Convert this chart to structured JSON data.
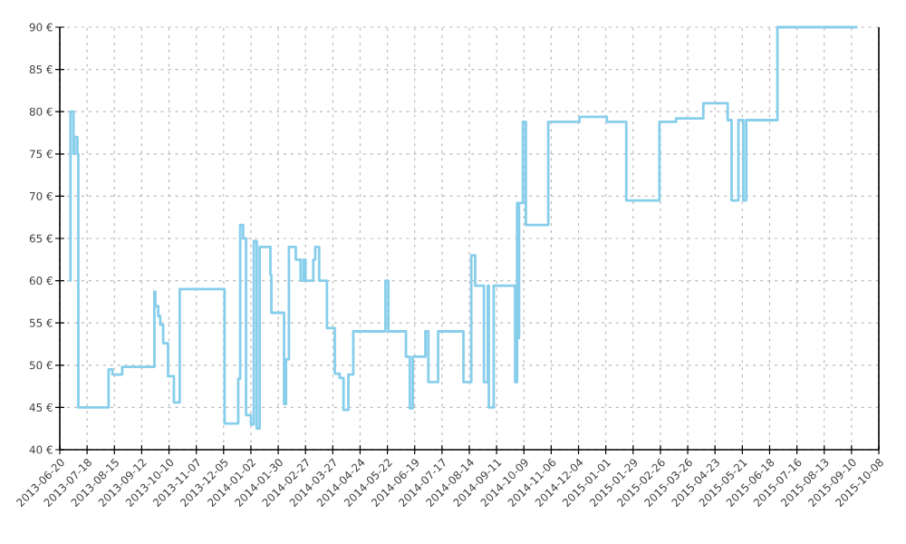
{
  "chart_data": {
    "type": "step",
    "color": "#87ceeb",
    "grid": true,
    "line_style": "solid",
    "marker": "none",
    "x": [
      "2013-06-30",
      "2013-07-01",
      "2013-07-04",
      "2013-07-05",
      "2013-07-08",
      "2013-07-09",
      "2013-08-09",
      "2013-08-13",
      "2013-08-23",
      "2013-09-25",
      "2013-09-26",
      "2013-09-29",
      "2013-10-01",
      "2013-10-04",
      "2013-10-09",
      "2013-10-15",
      "2013-10-21",
      "2013-12-06",
      "2013-12-20",
      "2013-12-22",
      "2013-12-25",
      "2013-12-28",
      "2014-01-02",
      "2014-01-05",
      "2014-01-08",
      "2014-01-11",
      "2014-01-22",
      "2014-01-23",
      "2014-02-05",
      "2014-02-07",
      "2014-02-10",
      "2014-02-17",
      "2014-02-22",
      "2014-02-25",
      "2014-02-27",
      "2014-03-07",
      "2014-03-09",
      "2014-03-13",
      "2014-03-21",
      "2014-03-29",
      "2014-04-03",
      "2014-04-07",
      "2014-04-12",
      "2014-04-17",
      "2014-05-20",
      "2014-05-23",
      "2014-06-10",
      "2014-06-14",
      "2014-06-17",
      "2014-06-30",
      "2014-07-03",
      "2014-07-13",
      "2014-08-08",
      "2014-08-16",
      "2014-08-20",
      "2014-08-29",
      "2014-09-02",
      "2014-09-03",
      "2014-09-08",
      "2014-09-30",
      "2014-10-02",
      "2014-10-03",
      "2014-10-04",
      "2014-10-08",
      "2014-10-11",
      "2014-11-03",
      "2014-12-05",
      "2015-01-02",
      "2015-01-22",
      "2015-02-25",
      "2015-03-14",
      "2015-04-11",
      "2015-05-06",
      "2015-05-10",
      "2015-05-17",
      "2015-05-22",
      "2015-05-25",
      "2015-06-26",
      "2015-09-16"
    ],
    "values": [
      60,
      80,
      75,
      77,
      75,
      45,
      49.5,
      48.9,
      49.8,
      58.7,
      57,
      55.8,
      54.8,
      52.6,
      48.7,
      45.6,
      59,
      43.1,
      48.4,
      66.6,
      65,
      44.1,
      43,
      64.7,
      42.5,
      64,
      60.7,
      56.2,
      45.4,
      50.7,
      64,
      62.5,
      60,
      62.5,
      60,
      62.5,
      64,
      60,
      54.4,
      49,
      48.5,
      44.7,
      48.9,
      54,
      60,
      54,
      51,
      44.9,
      51,
      54,
      48,
      54,
      48,
      63,
      59.4,
      48,
      59.4,
      45,
      59.4,
      48,
      69.2,
      53.2,
      69.2,
      78.8,
      66.6,
      78.8,
      79.4,
      78.8,
      69.5,
      78.8,
      79.2,
      81,
      79,
      69.5,
      79,
      69.5,
      79,
      90,
      90
    ],
    "xlim": [
      "2013-06-20",
      "2015-10-08"
    ],
    "xticks": [
      "2013-06-20",
      "2013-07-18",
      "2013-08-15",
      "2013-09-12",
      "2013-10-10",
      "2013-11-07",
      "2013-12-05",
      "2014-01-02",
      "2014-01-30",
      "2014-02-27",
      "2014-03-27",
      "2014-04-24",
      "2014-05-22",
      "2014-06-19",
      "2014-07-17",
      "2014-08-14",
      "2014-09-11",
      "2014-10-09",
      "2014-11-06",
      "2014-12-04",
      "2015-01-01",
      "2015-01-29",
      "2015-02-26",
      "2015-03-26",
      "2015-04-23",
      "2015-05-21",
      "2015-06-18",
      "2015-07-16",
      "2015-08-13",
      "2015-09-10",
      "2015-10-08"
    ],
    "ylim": [
      40,
      90
    ],
    "yticks": [
      {
        "value": 40,
        "label": "40 €"
      },
      {
        "value": 45,
        "label": "45 €"
      },
      {
        "value": 50,
        "label": "50 €"
      },
      {
        "value": 55,
        "label": "55 €"
      },
      {
        "value": 60,
        "label": "60 €"
      },
      {
        "value": 65,
        "label": "65 €"
      },
      {
        "value": 70,
        "label": "70 €"
      },
      {
        "value": 75,
        "label": "75 €"
      },
      {
        "value": 80,
        "label": "80 €"
      },
      {
        "value": 85,
        "label": "85 €"
      },
      {
        "value": 90,
        "label": "90 €"
      }
    ]
  }
}
